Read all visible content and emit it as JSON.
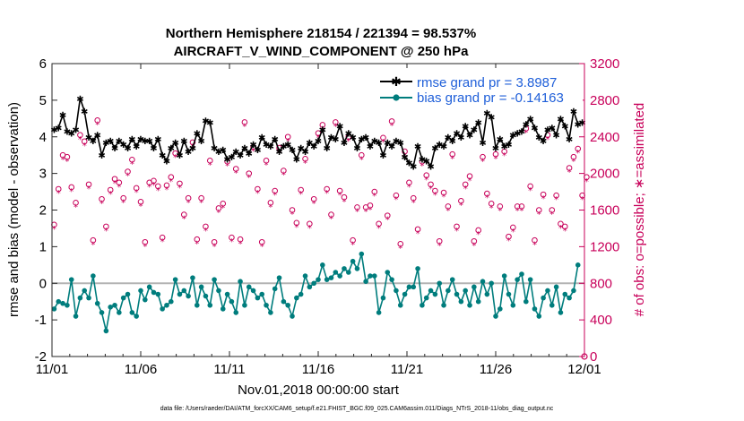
{
  "chart_data": {
    "type": "line",
    "title_line1": "Northern Hemisphere 218154 / 221394 = 98.537%",
    "title_line2": "AIRCRAFT_V_WIND_COMPONENT @ 250 hPa",
    "xlabel": "Nov.01,2018 00:00:00 start",
    "ylabel_left": "rmse and bias (model - observation)",
    "ylabel_right": "# of obs: o=possible; ∗=assimilated",
    "footer": "data file: /Users/raeder/DAI/ATM_forcXX/CAM6_setup/f.e21.FHIST_BGC.f09_025.CAM6assim.011/Diags_NTrS_2018-11/obs_diag_output.nc",
    "x_range_days": [
      0,
      30
    ],
    "x_ticks": [
      {
        "value": 0,
        "label": "11/01"
      },
      {
        "value": 5,
        "label": "11/06"
      },
      {
        "value": 10,
        "label": "11/11"
      },
      {
        "value": 15,
        "label": "11/16"
      },
      {
        "value": 20,
        "label": "11/21"
      },
      {
        "value": 25,
        "label": "11/26"
      },
      {
        "value": 30,
        "label": "12/01"
      }
    ],
    "ylim_left": [
      -2,
      6
    ],
    "yticks_left": [
      "-2",
      "-1",
      "0",
      "1",
      "2",
      "3",
      "4",
      "5",
      "6"
    ],
    "ylim_right": [
      0,
      3200
    ],
    "yticks_right": [
      "0",
      "400",
      "800",
      "1200",
      "1600",
      "2000",
      "2400",
      "2800",
      "3200"
    ],
    "colors": {
      "rmse": "#000000",
      "bias": "#007d7d",
      "obs": "#c8005a",
      "legend_text": "#1f5fd9",
      "zero_line": "#b4b4b4",
      "axis": "#262626"
    },
    "series": [
      {
        "name": "rmse grand pr = 3.8987",
        "axis": "left",
        "values": [
          4.2,
          4.25,
          4.6,
          4.15,
          4.1,
          4.2,
          5.05,
          4.7,
          4.0,
          3.9,
          4.05,
          3.5,
          3.85,
          3.9,
          3.7,
          3.9,
          3.8,
          3.7,
          3.95,
          3.75,
          3.95,
          3.9,
          3.9,
          3.7,
          3.95,
          3.5,
          3.35,
          3.7,
          3.85,
          3.5,
          3.9,
          3.6,
          3.7,
          4.1,
          3.9,
          4.45,
          4.4,
          3.7,
          3.6,
          3.65,
          3.4,
          3.45,
          3.6,
          3.5,
          3.7,
          3.55,
          3.8,
          3.65,
          4.0,
          3.8,
          3.75,
          3.95,
          3.6,
          3.75,
          3.8,
          3.65,
          3.4,
          3.7,
          3.6,
          3.85,
          3.75,
          3.9,
          4.2,
          3.7,
          4.0,
          3.95,
          4.3,
          3.85,
          4.1,
          4.0,
          3.7,
          3.95,
          4.0,
          3.75,
          3.9,
          3.85,
          3.5,
          3.85,
          3.75,
          3.9,
          3.85,
          3.45,
          3.3,
          3.2,
          3.75,
          3.4,
          3.35,
          3.2,
          3.7,
          3.8,
          3.75,
          4.0,
          3.9,
          4.1,
          4.0,
          4.3,
          4.05,
          4.2,
          4.4,
          3.85,
          4.65,
          4.55,
          3.7,
          3.95,
          3.75,
          3.8,
          4.05,
          4.1,
          4.15,
          4.35,
          4.5,
          4.25,
          4.0,
          3.9,
          4.2,
          4.25,
          4.05,
          4.5,
          4.3,
          3.95,
          4.7,
          4.35,
          4.4
        ]
      },
      {
        "name": "bias grand pr = -0.14163",
        "axis": "left",
        "values": [
          -0.7,
          -0.5,
          -0.55,
          -0.6,
          0.1,
          -0.9,
          -0.4,
          -0.2,
          -0.4,
          0.2,
          -0.55,
          -0.8,
          -1.3,
          -0.65,
          -0.6,
          -0.8,
          -0.4,
          -0.3,
          -0.8,
          -0.9,
          -0.2,
          -0.45,
          -0.1,
          -0.25,
          -0.3,
          -0.7,
          -0.6,
          -0.5,
          0.1,
          -0.3,
          -0.2,
          -0.35,
          0.15,
          -0.6,
          -0.1,
          -0.35,
          -0.6,
          0.1,
          -0.2,
          -0.7,
          -0.3,
          -0.5,
          -0.8,
          0.05,
          -0.6,
          -0.1,
          -0.2,
          -0.4,
          -0.3,
          -0.6,
          -0.8,
          -0.15,
          0.15,
          -0.5,
          -0.6,
          -0.9,
          -0.4,
          -0.3,
          0.2,
          -0.1,
          0.0,
          0.1,
          0.5,
          0.1,
          0.15,
          0.3,
          0.2,
          0.4,
          0.3,
          0.6,
          0.4,
          0.8,
          0.05,
          0.2,
          0.2,
          -0.8,
          -0.4,
          0.3,
          0.1,
          -0.2,
          -0.6,
          -0.3,
          -0.1,
          -0.1,
          0.4,
          -0.6,
          -0.4,
          -0.2,
          -0.3,
          0.0,
          -0.6,
          -0.2,
          0.1,
          -0.3,
          -0.5,
          -0.2,
          -0.6,
          -0.1,
          -0.5,
          0.05,
          -0.3,
          0.0,
          -0.9,
          -0.7,
          0.2,
          -0.3,
          -0.6,
          0.1,
          0.25,
          -0.5,
          0.1,
          -0.7,
          -0.9,
          -0.4,
          -0.2,
          -0.6,
          -0.1,
          -0.8,
          -0.3,
          -0.4,
          -0.2,
          0.5
        ]
      },
      {
        "name": "possible",
        "axis": "right",
        "marker": "o",
        "values": [
          1440,
          1830,
          2200,
          2180,
          1850,
          1680,
          2420,
          2350,
          1880,
          1270,
          2580,
          1720,
          1420,
          1820,
          1940,
          1900,
          1730,
          2020,
          2150,
          1840,
          1690,
          1250,
          1900,
          1920,
          1860,
          1300,
          1870,
          1960,
          2220,
          1890,
          1550,
          1730,
          2340,
          1280,
          1730,
          1420,
          2140,
          1250,
          1620,
          1670,
          2130,
          1300,
          2050,
          1280,
          2560,
          2000,
          2290,
          1830,
          1250,
          2140,
          1680,
          1810,
          2280,
          2030,
          2400,
          1600,
          1460,
          1820,
          2160,
          1450,
          1720,
          2440,
          2530,
          1830,
          1550,
          2560,
          1810,
          1740,
          2400,
          1270,
          1630,
          2200,
          1630,
          1650,
          1800,
          1450,
          2390,
          1540,
          2570,
          1760,
          1230,
          2240,
          1900,
          1730,
          1390,
          2130,
          1980,
          1880,
          1810,
          1260,
          1790,
          1640,
          2210,
          1420,
          1700,
          1880,
          1970,
          1260,
          1380,
          2180,
          1780,
          1670,
          2210,
          1640,
          2240,
          1310,
          1410,
          1640,
          1640,
          2490,
          1860,
          1270,
          1600,
          1770,
          2420,
          1600,
          1760,
          1450,
          1420,
          2060,
          2180,
          2270,
          1760,
          1960
        ]
      },
      {
        "name": "assimilated",
        "axis": "right",
        "marker": "*",
        "values": [
          1400,
          1790,
          2160,
          2140,
          1810,
          1640,
          2380,
          2310,
          1840,
          1230,
          2540,
          1680,
          1380,
          1780,
          1900,
          1860,
          1690,
          1980,
          2110,
          1800,
          1650,
          1210,
          1860,
          1880,
          1820,
          1260,
          1830,
          1920,
          2180,
          1850,
          1510,
          1690,
          2300,
          1240,
          1690,
          1380,
          2100,
          1210,
          1580,
          1630,
          2090,
          1260,
          2010,
          1240,
          2520,
          1960,
          2250,
          1790,
          1210,
          2100,
          1640,
          1770,
          2240,
          1990,
          2360,
          1560,
          1420,
          1780,
          2120,
          1410,
          1680,
          2400,
          2490,
          1790,
          1510,
          2520,
          1770,
          1700,
          2360,
          1230,
          1590,
          2160,
          1590,
          1610,
          1760,
          1410,
          2350,
          1500,
          2530,
          1720,
          1190,
          2200,
          1860,
          1690,
          1350,
          2090,
          1940,
          1840,
          1770,
          1220,
          1750,
          1600,
          2170,
          1380,
          1660,
          1840,
          1930,
          1220,
          1340,
          2140,
          1740,
          1630,
          2170,
          1600,
          2200,
          1270,
          1370,
          1600,
          1600,
          2450,
          1820,
          1230,
          1560,
          1730,
          2380,
          1560,
          1720,
          1410,
          1380,
          2020,
          2140,
          2230,
          1720,
          1920
        ]
      }
    ],
    "extra_points": [
      {
        "series": "possible",
        "x_day": 30,
        "value": 0
      }
    ]
  }
}
